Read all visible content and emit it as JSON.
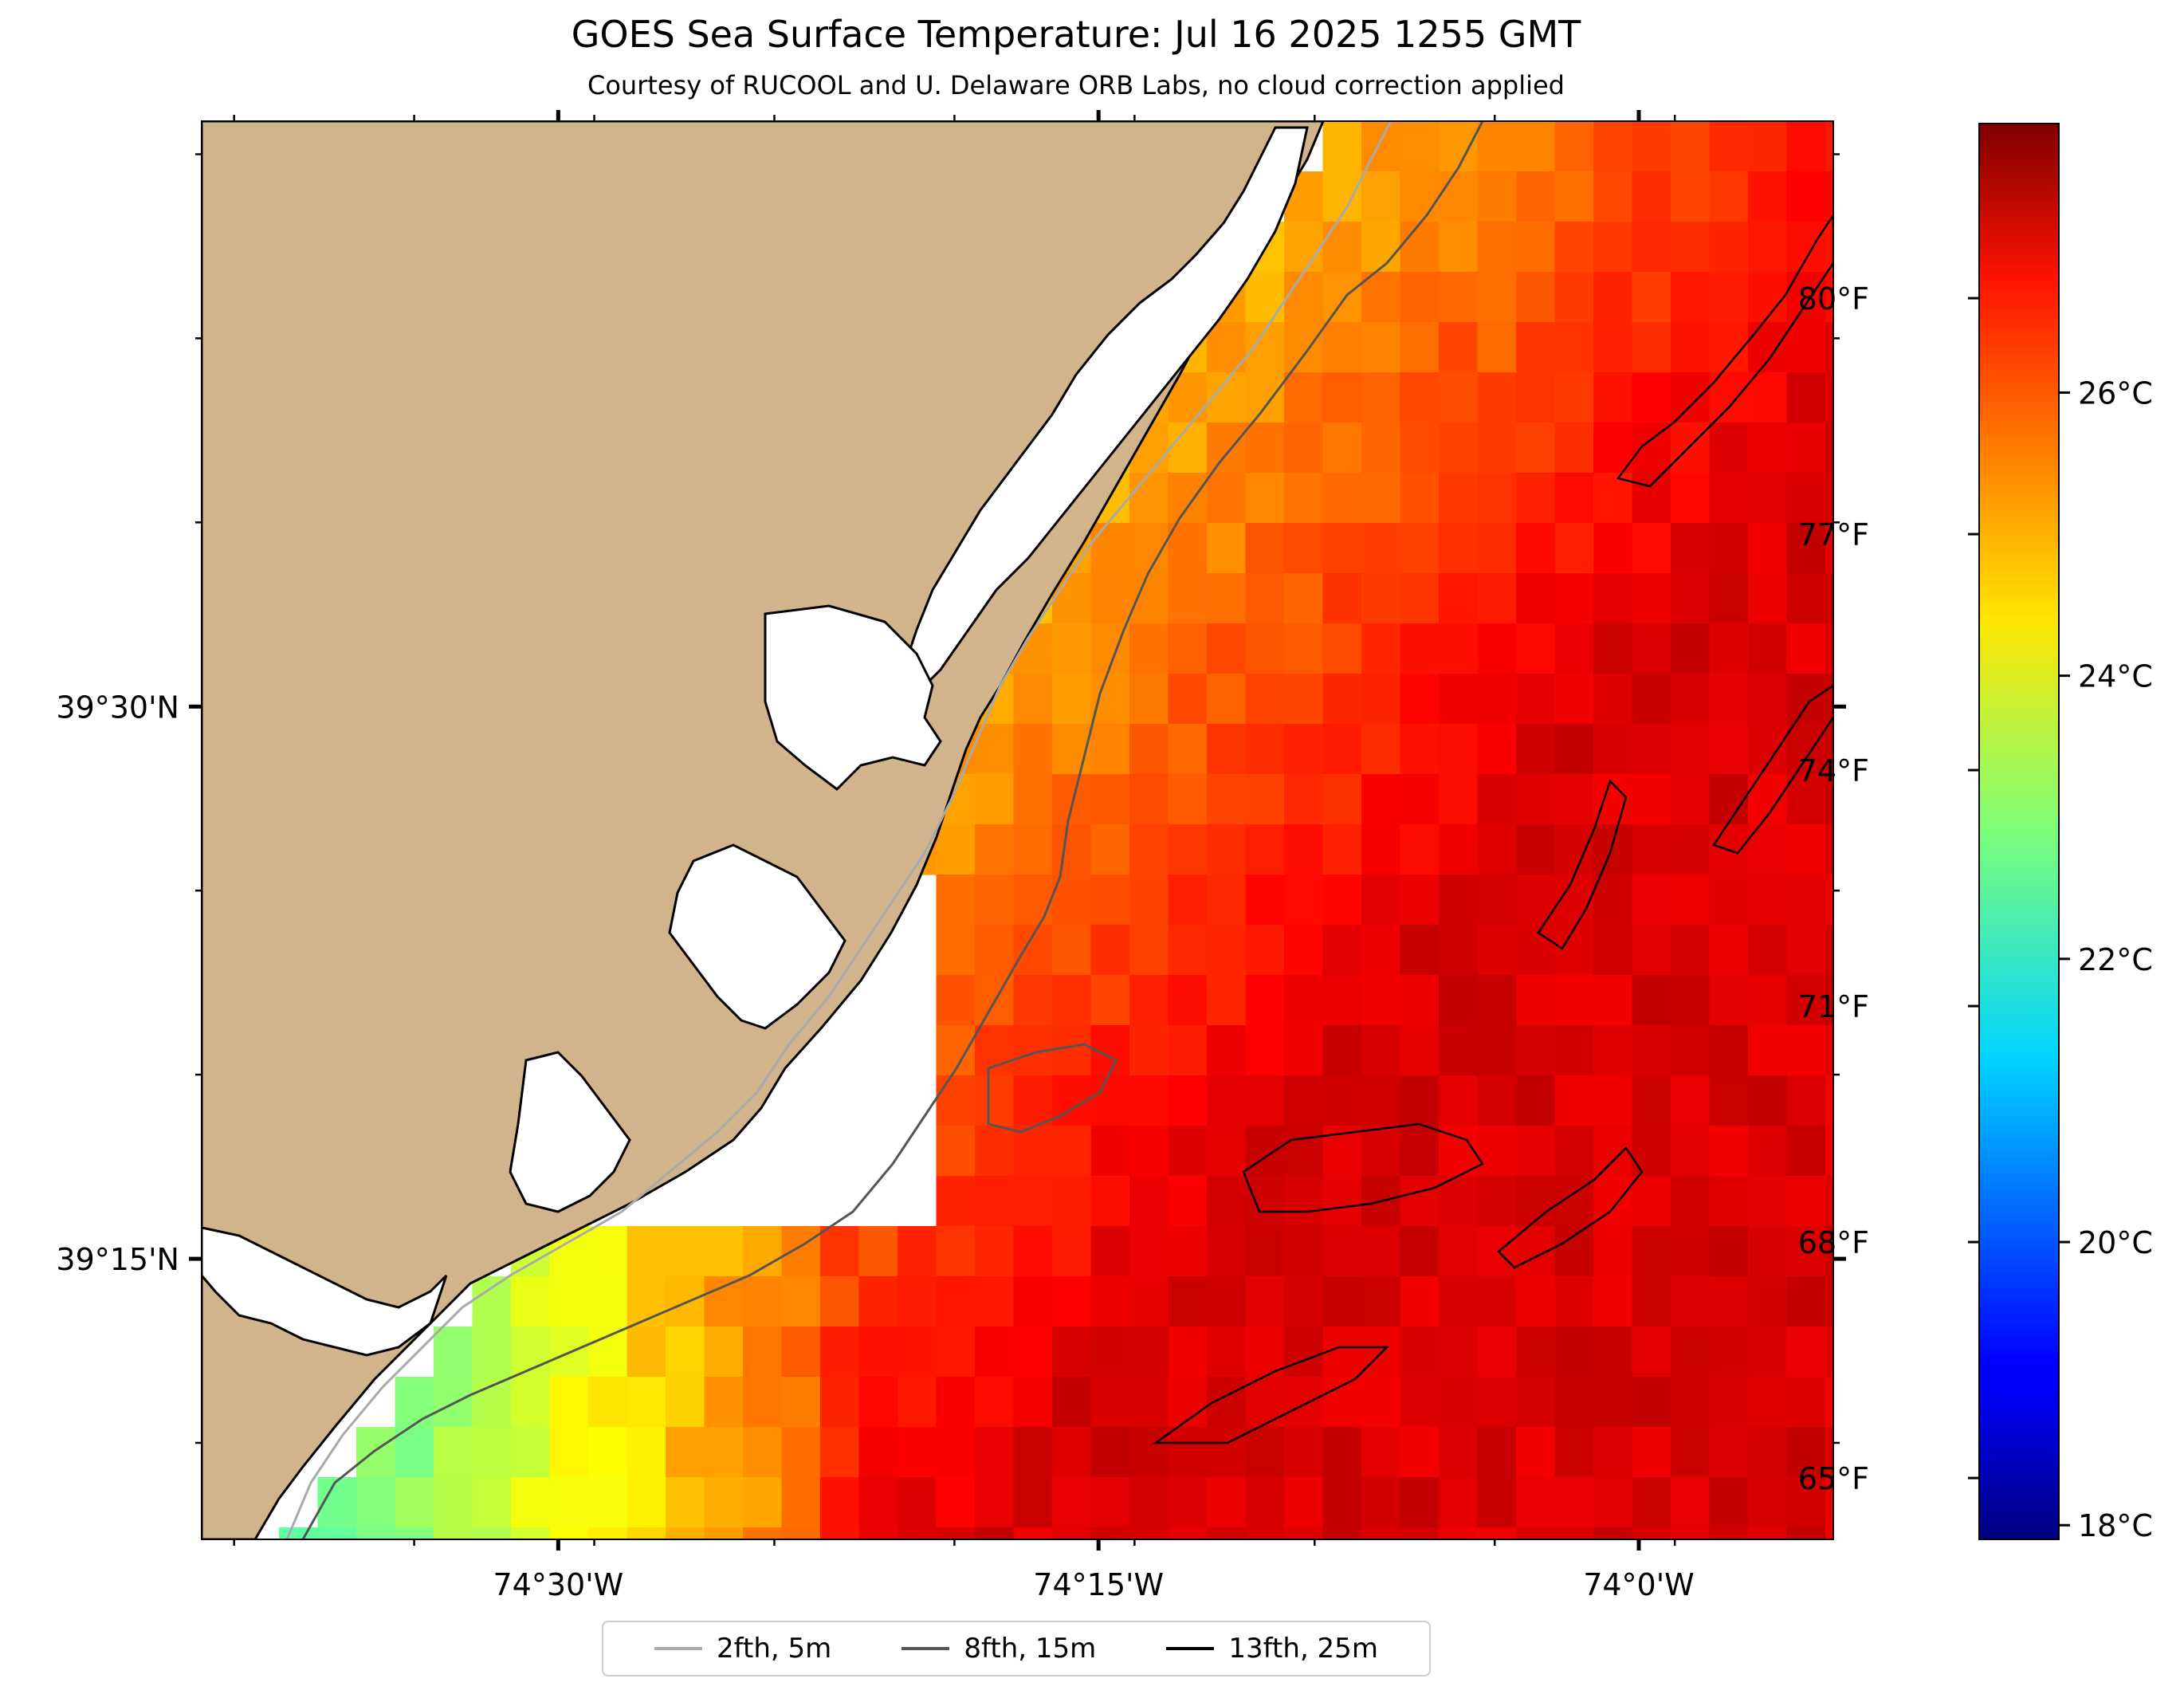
{
  "title": "GOES Sea Surface Temperature: Jul 16 2025 1255 GMT",
  "subtitle": "Courtesy of RUCOOL and U. Delaware ORB Labs, no cloud correction applied",
  "colors": {
    "land": "#d2b48c",
    "coast": "#000000",
    "contour_2fth": "#aaaaaa",
    "contour_8fth": "#555555",
    "contour_13fth": "#000000"
  },
  "axes": {
    "x_ticks": [
      {
        "label": "74°30'W",
        "lon": -74.5
      },
      {
        "label": "74°15'W",
        "lon": -74.25
      },
      {
        "label": "74°0'W",
        "lon": -74.0
      }
    ],
    "y_ticks": [
      {
        "label": "39°30'N",
        "lat": 39.5
      },
      {
        "label": "39°15'N",
        "lat": 39.25
      }
    ],
    "xlim": [
      -74.665,
      -73.91
    ],
    "ylim": [
      39.123,
      39.765
    ]
  },
  "colorbar": {
    "colormap": "jet",
    "range_c": [
      17.9,
      27.9
    ],
    "celsius_ticks": [
      {
        "label": "18°C",
        "value": 18
      },
      {
        "label": "20°C",
        "value": 20
      },
      {
        "label": "22°C",
        "value": 22
      },
      {
        "label": "24°C",
        "value": 24
      },
      {
        "label": "26°C",
        "value": 26
      }
    ],
    "fahrenheit_ticks": [
      {
        "label": "65°F",
        "value": 65
      },
      {
        "label": "68°F",
        "value": 68
      },
      {
        "label": "71°F",
        "value": 71
      },
      {
        "label": "74°F",
        "value": 74
      },
      {
        "label": "77°F",
        "value": 77
      },
      {
        "label": "80°F",
        "value": 80
      }
    ]
  },
  "legend": {
    "items": [
      {
        "label": "2fth, 5m",
        "color": "#aaaaaa"
      },
      {
        "label": "8fth, 15m",
        "color": "#555555"
      },
      {
        "label": "13fth, 25m",
        "color": "#000000"
      }
    ]
  }
}
